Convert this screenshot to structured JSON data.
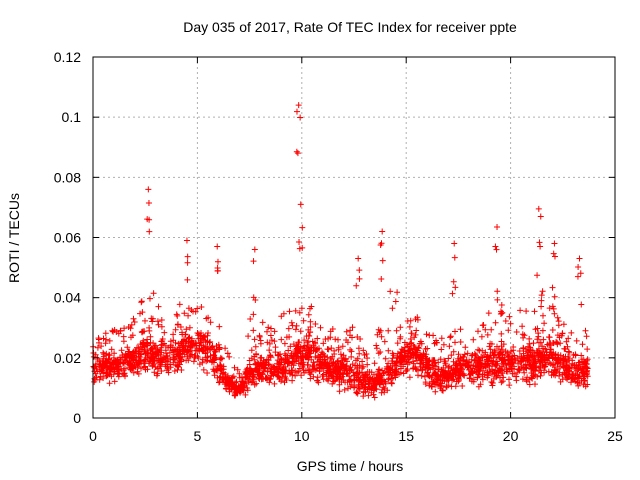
{
  "chart_data": {
    "type": "scatter",
    "title": "Day 035 of 2017, Rate Of TEC Index for receiver ppte",
    "xlabel": "GPS time / hours",
    "ylabel": "ROTI / TECUs",
    "xlim": [
      0,
      25
    ],
    "ylim": [
      0,
      0.12
    ],
    "grid": true,
    "marker": "+",
    "series_color": "#ff0000",
    "x_tick_labels": [
      "0",
      "5",
      "10",
      "15",
      "20",
      "25"
    ],
    "y_tick_labels": [
      "0",
      "0.02",
      "0.04",
      "0.06",
      "0.08",
      "0.1",
      "0.12"
    ],
    "x_ticks": [
      0,
      5,
      10,
      15,
      20,
      25
    ],
    "y_ticks": [
      0,
      0.02,
      0.04,
      0.06,
      0.08,
      0.1,
      0.12
    ],
    "notable_points": [
      {
        "x": 9.85,
        "y": 0.104
      },
      {
        "x": 2.65,
        "y": 0.076
      },
      {
        "x": 9.95,
        "y": 0.071
      },
      {
        "x": 21.35,
        "y": 0.0695
      },
      {
        "x": 19.35,
        "y": 0.0635
      },
      {
        "x": 13.85,
        "y": 0.062
      },
      {
        "x": 5.95,
        "y": 0.057
      },
      {
        "x": 7.75,
        "y": 0.056
      },
      {
        "x": 4.5,
        "y": 0.059
      },
      {
        "x": 23.3,
        "y": 0.053
      },
      {
        "x": 17.3,
        "y": 0.058
      },
      {
        "x": 12.7,
        "y": 0.053
      },
      {
        "x": 22.1,
        "y": 0.058
      }
    ],
    "profile": {
      "x": [
        0,
        0.5,
        1,
        1.5,
        2,
        2.5,
        3,
        3.5,
        4,
        4.5,
        5,
        5.5,
        6,
        6.5,
        7,
        7.5,
        8,
        8.5,
        9,
        9.5,
        10,
        10.5,
        11,
        11.5,
        12,
        12.5,
        13,
        13.5,
        14,
        14.5,
        15,
        15.5,
        16,
        16.5,
        17,
        17.5,
        18,
        18.5,
        19,
        19.5,
        20,
        20.5,
        21,
        21.5,
        22,
        22.5,
        23,
        23.5,
        23.7
      ],
      "y_low": [
        0.009,
        0.01,
        0.01,
        0.011,
        0.012,
        0.013,
        0.012,
        0.012,
        0.013,
        0.014,
        0.014,
        0.012,
        0.009,
        0.006,
        0.005,
        0.008,
        0.009,
        0.008,
        0.008,
        0.009,
        0.01,
        0.01,
        0.009,
        0.008,
        0.007,
        0.006,
        0.005,
        0.005,
        0.007,
        0.009,
        0.012,
        0.012,
        0.009,
        0.007,
        0.007,
        0.008,
        0.008,
        0.008,
        0.009,
        0.009,
        0.009,
        0.009,
        0.009,
        0.01,
        0.01,
        0.009,
        0.008,
        0.008,
        0.008
      ],
      "y_mid": [
        0.015,
        0.017,
        0.017,
        0.018,
        0.02,
        0.022,
        0.021,
        0.02,
        0.022,
        0.024,
        0.024,
        0.022,
        0.018,
        0.011,
        0.009,
        0.015,
        0.016,
        0.016,
        0.016,
        0.018,
        0.02,
        0.02,
        0.017,
        0.016,
        0.015,
        0.014,
        0.012,
        0.011,
        0.014,
        0.017,
        0.021,
        0.021,
        0.017,
        0.014,
        0.014,
        0.016,
        0.017,
        0.017,
        0.018,
        0.018,
        0.018,
        0.018,
        0.019,
        0.02,
        0.02,
        0.018,
        0.016,
        0.016,
        0.016
      ],
      "y_high": [
        0.025,
        0.028,
        0.03,
        0.032,
        0.035,
        0.045,
        0.042,
        0.036,
        0.038,
        0.042,
        0.038,
        0.036,
        0.032,
        0.022,
        0.016,
        0.035,
        0.033,
        0.03,
        0.034,
        0.037,
        0.038,
        0.038,
        0.032,
        0.03,
        0.03,
        0.034,
        0.028,
        0.026,
        0.042,
        0.047,
        0.034,
        0.034,
        0.03,
        0.026,
        0.028,
        0.032,
        0.03,
        0.03,
        0.036,
        0.04,
        0.038,
        0.036,
        0.04,
        0.044,
        0.042,
        0.036,
        0.032,
        0.03,
        0.03
      ]
    },
    "point_count": 2600
  }
}
